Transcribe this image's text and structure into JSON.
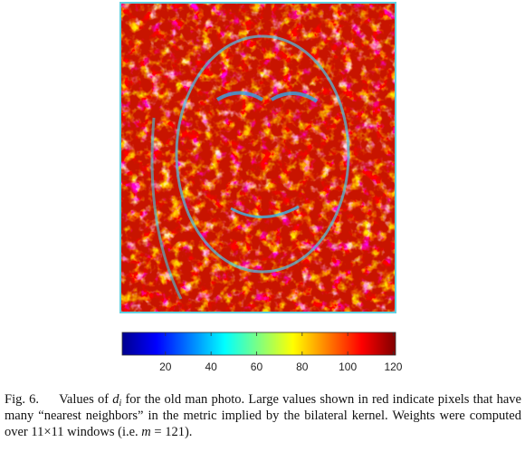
{
  "figure": {
    "colorbar": {
      "range": [
        1,
        121
      ],
      "ticks": [
        20,
        40,
        60,
        80,
        100,
        120
      ]
    },
    "caption": {
      "label": "Fig. 6.",
      "segments": [
        "Values of ",
        "d",
        "i",
        " for the old man photo. Large values shown in red indicate pixels that have many “nearest neighbors” in the metric implied by the bilateral kernel. Weights were computed over ",
        "11×11",
        " windows (i.e. ",
        "m",
        " = 121)."
      ]
    }
  }
}
